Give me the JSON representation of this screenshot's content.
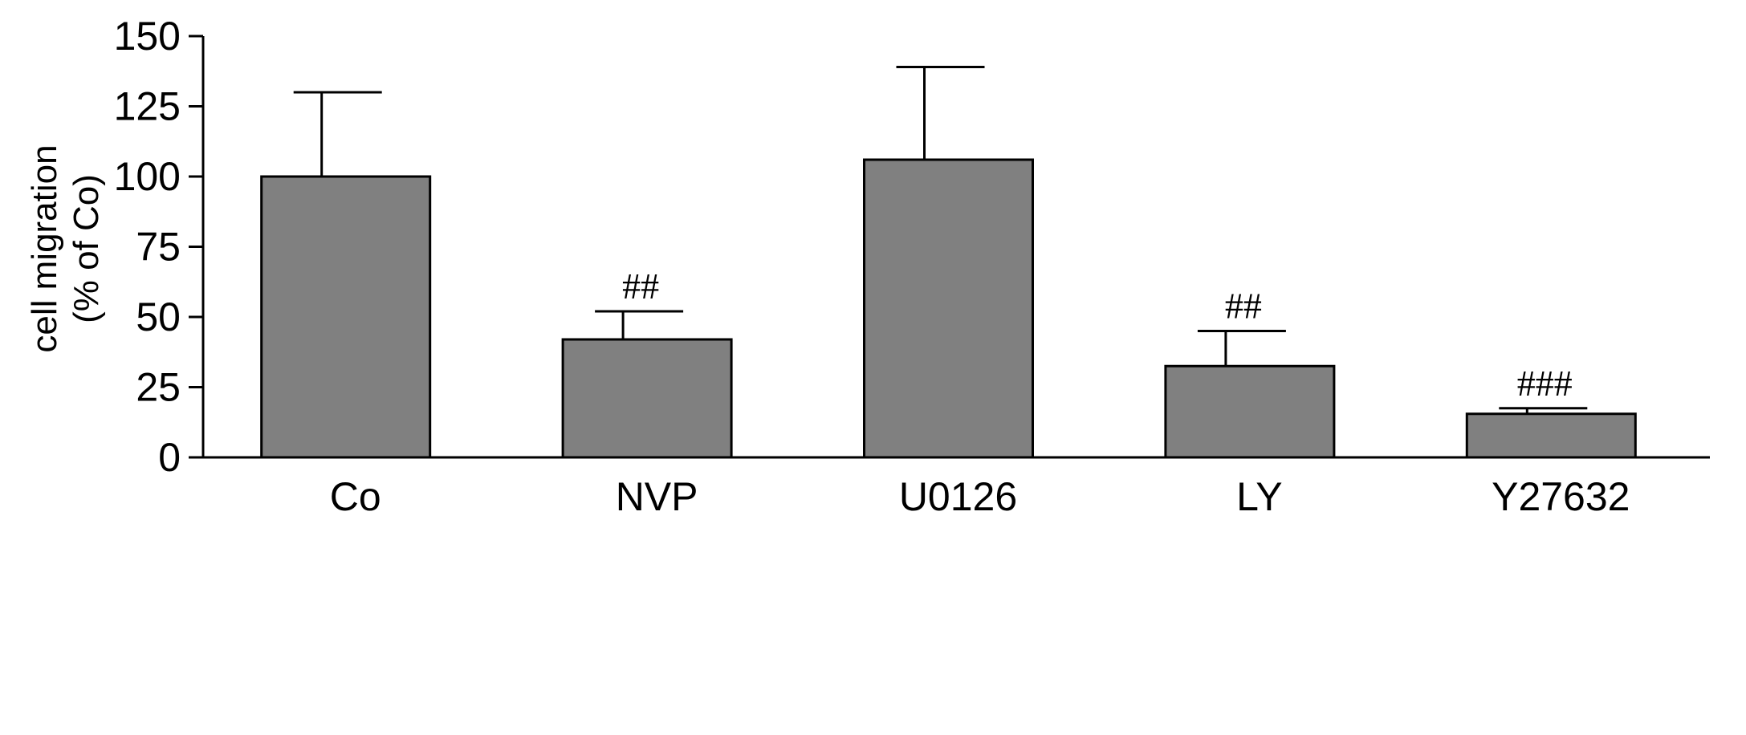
{
  "chart_data": {
    "type": "bar",
    "title": "",
    "xlabel": "",
    "ylabel_lines": [
      "cell migration",
      "(% of Co)"
    ],
    "ylim": [
      0,
      150
    ],
    "yticks": [
      0,
      25,
      50,
      75,
      100,
      125,
      150
    ],
    "categories": [
      "Co",
      "NVP",
      "U0126",
      "LY",
      "Y27632"
    ],
    "values": [
      100,
      42,
      106,
      32.5,
      15.5
    ],
    "errors": [
      30,
      10,
      33,
      12.5,
      2
    ],
    "annotations": [
      "",
      "##",
      "",
      "##",
      "###"
    ],
    "bar_color": "#808080",
    "grid": false,
    "legend": "none"
  }
}
